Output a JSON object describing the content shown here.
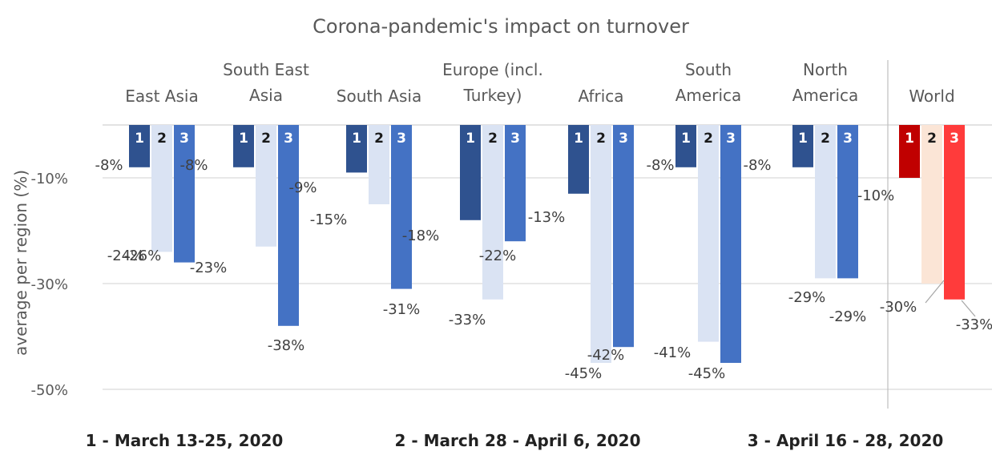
{
  "chart_data": {
    "type": "bar",
    "title": "Corona-pandemic's impact on turnover",
    "ylabel": "average per region (%)",
    "ylim": [
      -52,
      0
    ],
    "y_ticks": [
      "-10%",
      "-30%",
      "-50%"
    ],
    "y_tick_values": [
      -10,
      -30,
      -50
    ],
    "grid": true,
    "categories": [
      [
        "East Asia"
      ],
      [
        "South East",
        "Asia"
      ],
      [
        "South Asia"
      ],
      [
        "Europe (incl.",
        "Turkey)"
      ],
      [
        "Africa"
      ],
      [
        "South",
        "America"
      ],
      [
        "North",
        "America"
      ],
      [
        "World"
      ]
    ],
    "bar_numbers": [
      "1",
      "2",
      "3"
    ],
    "series": [
      {
        "name": "1 - March 13-25, 2020",
        "values": [
          -8,
          -8,
          -9,
          -18,
          -13,
          -8,
          -8,
          -10
        ]
      },
      {
        "name": "2 - March 28 - April 6, 2020",
        "values": [
          -24,
          -23,
          -15,
          -33,
          -45,
          -41,
          -29,
          -30
        ]
      },
      {
        "name": "3 - April 16 - 28, 2020",
        "values": [
          -26,
          -38,
          -31,
          -22,
          -42,
          -45,
          -29,
          -33
        ]
      }
    ],
    "data_labels": [
      [
        "-8%",
        "-8%",
        "-9%",
        "-18%",
        "-13%",
        "-8%",
        "-8%",
        "-10%"
      ],
      [
        "-24%",
        "-23%",
        "-15%",
        "-33%",
        "-45%",
        "-41%",
        "-29%",
        "-30%"
      ],
      [
        "-26%",
        "-38%",
        "-31%",
        "-22%",
        "-42%",
        "-45%",
        "-29%",
        "-33%"
      ]
    ],
    "colors": {
      "series": [
        "#2F528F",
        "#DAE3F3",
        "#4472C4"
      ],
      "world": [
        "#C00000",
        "#FBE5D6",
        "#FF3B3B"
      ],
      "numbers_light_bar": "#1a1a1a",
      "numbers_dark_bar": "#ffffff",
      "grid": "#d9d9d9",
      "separator": "#bfbfbf"
    },
    "legend_position": "bottom"
  }
}
